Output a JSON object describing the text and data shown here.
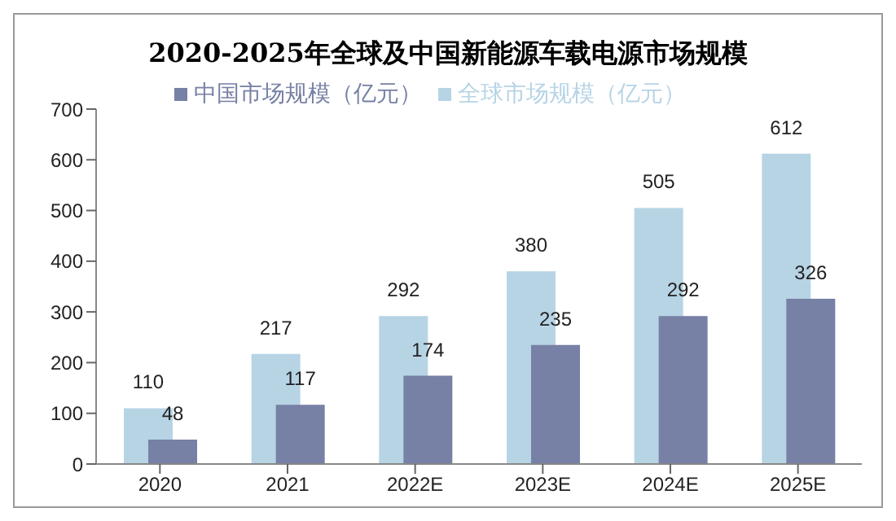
{
  "chart_data": {
    "type": "bar",
    "title": "2020-2025年全球及中国新能源车载电源市场规模",
    "categories": [
      "2020",
      "2021",
      "2022E",
      "2023E",
      "2024E",
      "2025E"
    ],
    "series": [
      {
        "name": "全球市场规模（亿元）",
        "color": "#b7d4e5",
        "values": [
          110,
          217,
          292,
          380,
          505,
          612
        ]
      },
      {
        "name": "中国市场规模（亿元）",
        "color": "#7780a5",
        "values": [
          48,
          117,
          174,
          235,
          292,
          326
        ]
      }
    ],
    "ylim": [
      0,
      700
    ],
    "yticks": [
      0,
      100,
      200,
      300,
      400,
      500,
      600,
      700
    ],
    "grid": false,
    "legend": "top",
    "data_labels": true
  }
}
